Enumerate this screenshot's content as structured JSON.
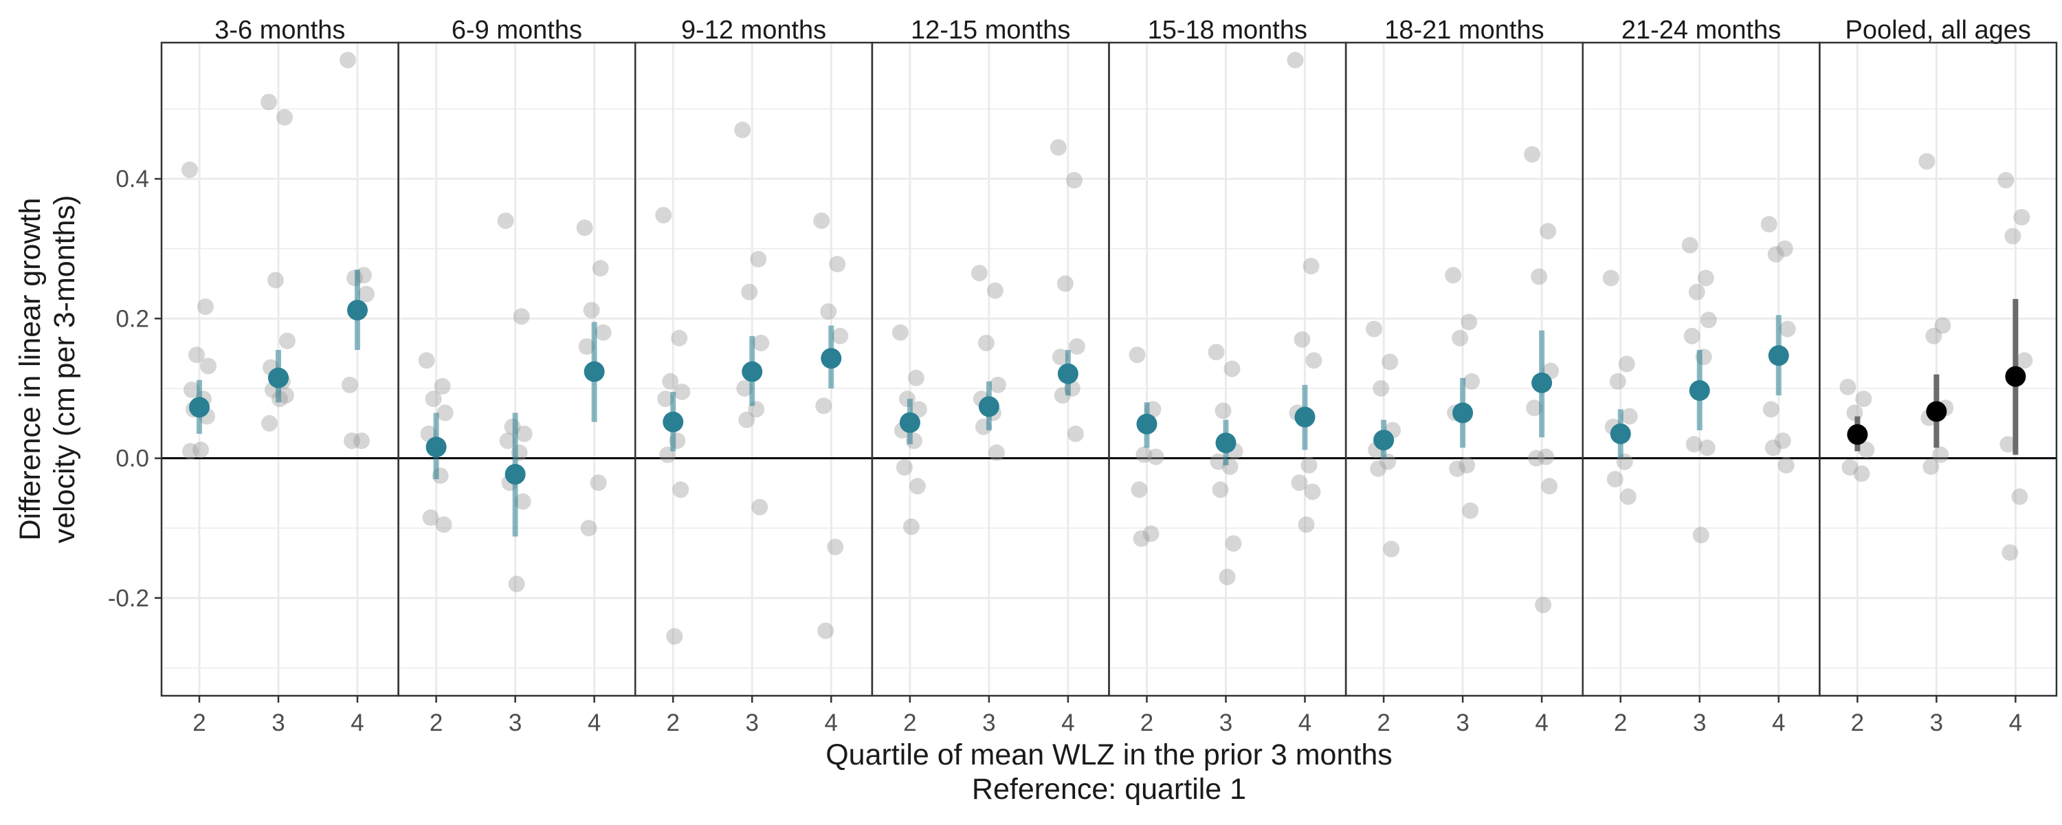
{
  "chart_data": {
    "type": "scatter",
    "ylabel_lines": [
      "Difference in linear growth",
      "velocity (cm per 3-months)"
    ],
    "xlabel_lines": [
      "Quartile of mean WLZ in the prior 3 months",
      "Reference: quartile 1"
    ],
    "categories": [
      "2",
      "3",
      "4"
    ],
    "y_ticks": [
      -0.2,
      0.0,
      0.2,
      0.4
    ],
    "y_tick_labels": [
      "-0.2",
      "0.0",
      "0.2",
      "0.4"
    ],
    "ylim": [
      -0.34,
      0.595
    ],
    "reference_line": 0,
    "grid": true,
    "colors": {
      "estimate": "#2a7f93",
      "pooled_estimate": "#000000",
      "pooled_interval": "#6b6b6b",
      "cohort_points": "#9e9e9e",
      "grid": "#ebebeb",
      "panel_border": "#333333"
    },
    "panels": [
      {
        "title": "3-6 months",
        "estimates": [
          {
            "x": "2",
            "y": 0.073,
            "lo": 0.035,
            "hi": 0.112
          },
          {
            "x": "3",
            "y": 0.115,
            "lo": 0.08,
            "hi": 0.155
          },
          {
            "x": "4",
            "y": 0.212,
            "lo": 0.155,
            "hi": 0.27
          }
        ],
        "cohorts": {
          "2": [
            0.413,
            0.217,
            0.148,
            0.132,
            0.098,
            0.085,
            0.07,
            0.06,
            0.012,
            0.01
          ],
          "3": [
            0.51,
            0.488,
            0.255,
            0.168,
            0.13,
            0.11,
            0.098,
            0.09,
            0.085,
            0.05
          ],
          "4": [
            0.57,
            0.262,
            0.258,
            0.235,
            0.105,
            0.025,
            0.025
          ]
        }
      },
      {
        "title": "6-9 months",
        "estimates": [
          {
            "x": "2",
            "y": 0.016,
            "lo": -0.03,
            "hi": 0.065
          },
          {
            "x": "3",
            "y": -0.023,
            "lo": -0.112,
            "hi": 0.065
          },
          {
            "x": "4",
            "y": 0.124,
            "lo": 0.052,
            "hi": 0.195
          }
        ],
        "cohorts": {
          "2": [
            0.14,
            0.103,
            0.085,
            0.065,
            0.035,
            -0.025,
            -0.085,
            -0.095
          ],
          "3": [
            0.34,
            0.203,
            0.045,
            0.035,
            0.025,
            0.008,
            -0.035,
            -0.062,
            -0.18
          ],
          "4": [
            0.33,
            0.272,
            0.212,
            0.18,
            0.16,
            -0.035,
            -0.1
          ]
        }
      },
      {
        "title": "9-12 months",
        "estimates": [
          {
            "x": "2",
            "y": 0.052,
            "lo": 0.01,
            "hi": 0.095
          },
          {
            "x": "3",
            "y": 0.124,
            "lo": 0.075,
            "hi": 0.175
          },
          {
            "x": "4",
            "y": 0.143,
            "lo": 0.1,
            "hi": 0.19
          }
        ],
        "cohorts": {
          "2": [
            0.348,
            0.172,
            0.11,
            0.095,
            0.085,
            0.025,
            0.005,
            -0.045,
            -0.255
          ],
          "3": [
            0.47,
            0.285,
            0.238,
            0.165,
            0.1,
            0.07,
            0.055,
            -0.07
          ],
          "4": [
            0.34,
            0.278,
            0.21,
            0.175,
            0.075,
            -0.127,
            -0.247
          ]
        }
      },
      {
        "title": "12-15 months",
        "estimates": [
          {
            "x": "2",
            "y": 0.051,
            "lo": 0.02,
            "hi": 0.085
          },
          {
            "x": "3",
            "y": 0.074,
            "lo": 0.04,
            "hi": 0.11
          },
          {
            "x": "4",
            "y": 0.121,
            "lo": 0.09,
            "hi": 0.155
          }
        ],
        "cohorts": {
          "2": [
            0.18,
            0.115,
            0.085,
            0.07,
            0.04,
            0.025,
            -0.013,
            -0.04,
            -0.098
          ],
          "3": [
            0.265,
            0.24,
            0.165,
            0.105,
            0.085,
            0.065,
            0.045,
            0.008
          ],
          "4": [
            0.445,
            0.398,
            0.25,
            0.16,
            0.145,
            0.1,
            0.09,
            0.035
          ]
        }
      },
      {
        "title": "15-18 months",
        "estimates": [
          {
            "x": "2",
            "y": 0.049,
            "lo": 0.015,
            "hi": 0.08
          },
          {
            "x": "3",
            "y": 0.022,
            "lo": -0.01,
            "hi": 0.055
          },
          {
            "x": "4",
            "y": 0.059,
            "lo": 0.012,
            "hi": 0.105
          }
        ],
        "cohorts": {
          "2": [
            0.148,
            0.07,
            0.005,
            0.002,
            -0.045,
            -0.108,
            -0.115
          ],
          "3": [
            0.152,
            0.128,
            0.068,
            0.01,
            -0.005,
            -0.012,
            -0.045,
            -0.122,
            -0.17
          ],
          "4": [
            0.57,
            0.275,
            0.17,
            0.14,
            0.065,
            -0.01,
            -0.035,
            -0.048,
            -0.095
          ]
        }
      },
      {
        "title": "18-21 months",
        "estimates": [
          {
            "x": "2",
            "y": 0.026,
            "lo": 0.0,
            "hi": 0.055
          },
          {
            "x": "3",
            "y": 0.065,
            "lo": 0.015,
            "hi": 0.115
          },
          {
            "x": "4",
            "y": 0.108,
            "lo": 0.03,
            "hi": 0.183
          }
        ],
        "cohorts": {
          "2": [
            0.185,
            0.138,
            0.1,
            0.04,
            0.012,
            -0.005,
            -0.015,
            -0.13
          ],
          "3": [
            0.262,
            0.195,
            0.172,
            0.11,
            0.065,
            -0.01,
            -0.015,
            -0.075
          ],
          "4": [
            0.435,
            0.325,
            0.26,
            0.125,
            0.072,
            0.002,
            0.0,
            -0.04,
            -0.21
          ]
        }
      },
      {
        "title": "21-24 months",
        "estimates": [
          {
            "x": "2",
            "y": 0.035,
            "lo": 0.0,
            "hi": 0.07
          },
          {
            "x": "3",
            "y": 0.097,
            "lo": 0.04,
            "hi": 0.155
          },
          {
            "x": "4",
            "y": 0.147,
            "lo": 0.09,
            "hi": 0.205
          }
        ],
        "cohorts": {
          "2": [
            0.258,
            0.135,
            0.11,
            0.06,
            0.045,
            -0.005,
            -0.03,
            -0.055
          ],
          "3": [
            0.305,
            0.258,
            0.238,
            0.198,
            0.175,
            0.145,
            0.02,
            0.015,
            -0.11
          ],
          "4": [
            0.335,
            0.3,
            0.292,
            0.185,
            0.07,
            0.025,
            0.015,
            -0.01
          ]
        }
      },
      {
        "title": "Pooled, all ages",
        "pooled": true,
        "estimates": [
          {
            "x": "2",
            "y": 0.034,
            "lo": 0.01,
            "hi": 0.06
          },
          {
            "x": "3",
            "y": 0.067,
            "lo": 0.015,
            "hi": 0.12
          },
          {
            "x": "4",
            "y": 0.117,
            "lo": 0.005,
            "hi": 0.228
          }
        ],
        "cohorts": {
          "2": [
            0.102,
            0.085,
            0.065,
            0.012,
            -0.013,
            -0.022
          ],
          "3": [
            0.425,
            0.19,
            0.175,
            0.072,
            0.058,
            0.005,
            -0.012
          ],
          "4": [
            0.398,
            0.345,
            0.318,
            0.14,
            0.02,
            -0.055,
            -0.135
          ]
        }
      }
    ]
  }
}
